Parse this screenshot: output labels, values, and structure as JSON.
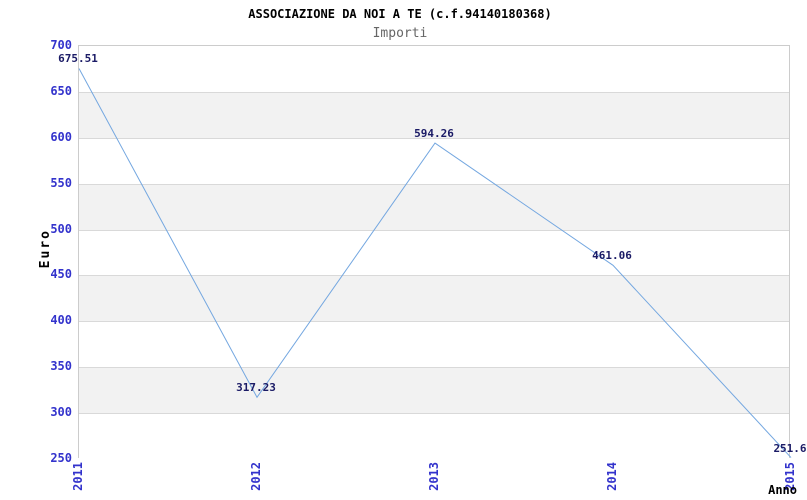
{
  "chart_data": {
    "type": "line",
    "title": "ASSOCIAZIONE DA NOI A TE (c.f.94140180368)",
    "subtitle": "Importi",
    "xlabel": "Anno",
    "ylabel": "Euro",
    "categories": [
      "2011",
      "2012",
      "2013",
      "2014",
      "2015"
    ],
    "series": [
      {
        "name": "Importi",
        "values": [
          675.51,
          317.23,
          594.26,
          461.06,
          251.6
        ]
      }
    ],
    "point_labels": [
      "675.51",
      "317.23",
      "594.26",
      "461.06",
      "251.6"
    ],
    "ylim": [
      250,
      700
    ],
    "ytick_step": 50,
    "yticks": [
      700,
      650,
      600,
      550,
      500,
      450,
      400,
      350,
      300,
      250
    ],
    "grid": "horizontal-bands",
    "legend_position": "none",
    "colors": {
      "line": "#74a7e0",
      "tick_label": "#3333cc",
      "value_label": "#1b1b66",
      "band_alt": "#f2f2f2",
      "gridline": "#d9d9d9",
      "plot_border": "#cccccc",
      "title": "#000000",
      "subtitle": "#666666",
      "axis_title": "#000000"
    }
  }
}
